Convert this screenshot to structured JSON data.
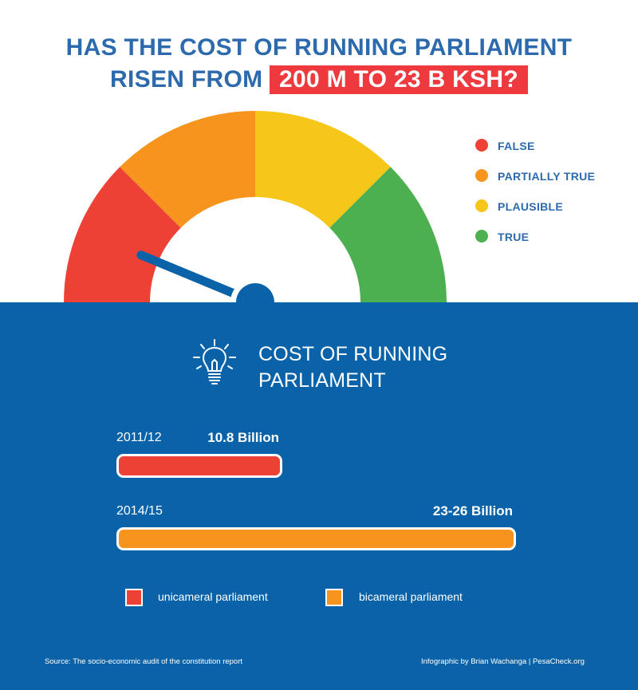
{
  "title": {
    "line1": "HAS THE COST OF RUNNING PARLIAMENT",
    "line2_prefix": "RISEN FROM",
    "line2_highlight": "200 M TO 23 B KSH?"
  },
  "gauge": {
    "segments": [
      {
        "label": "FALSE",
        "color": "#ee4136"
      },
      {
        "label": "PARTIALLY TRUE",
        "color": "#f7941d"
      },
      {
        "label": "PLAUSIBLE",
        "color": "#f6c619"
      },
      {
        "label": "TRUE",
        "color": "#4cb050"
      }
    ],
    "needle_verdict": "FALSE",
    "needle_color": "#0a63a8"
  },
  "panel": {
    "icon": "lightbulb-icon",
    "title_line1": "COST OF RUNNING",
    "title_line2": "PARLIAMENT"
  },
  "chart_data": {
    "type": "bar",
    "orientation": "horizontal",
    "title": "COST OF RUNNING PARLIAMENT",
    "categories": [
      "2011/12",
      "2014/15"
    ],
    "values": [
      10.8,
      26
    ],
    "value_labels": [
      "10.8 Billion",
      "23-26 Billion"
    ],
    "series_colors": [
      "#ee4136",
      "#f7941d"
    ],
    "legend": [
      {
        "label": "unicameral parliament",
        "color": "#ee4136"
      },
      {
        "label": "bicameral parliament",
        "color": "#f7941d"
      }
    ]
  },
  "footer": {
    "source": "Source: The socio-economic audit of the constitution report",
    "credit": "Infographic by Brian Wachanga | PesaCheck.org"
  }
}
